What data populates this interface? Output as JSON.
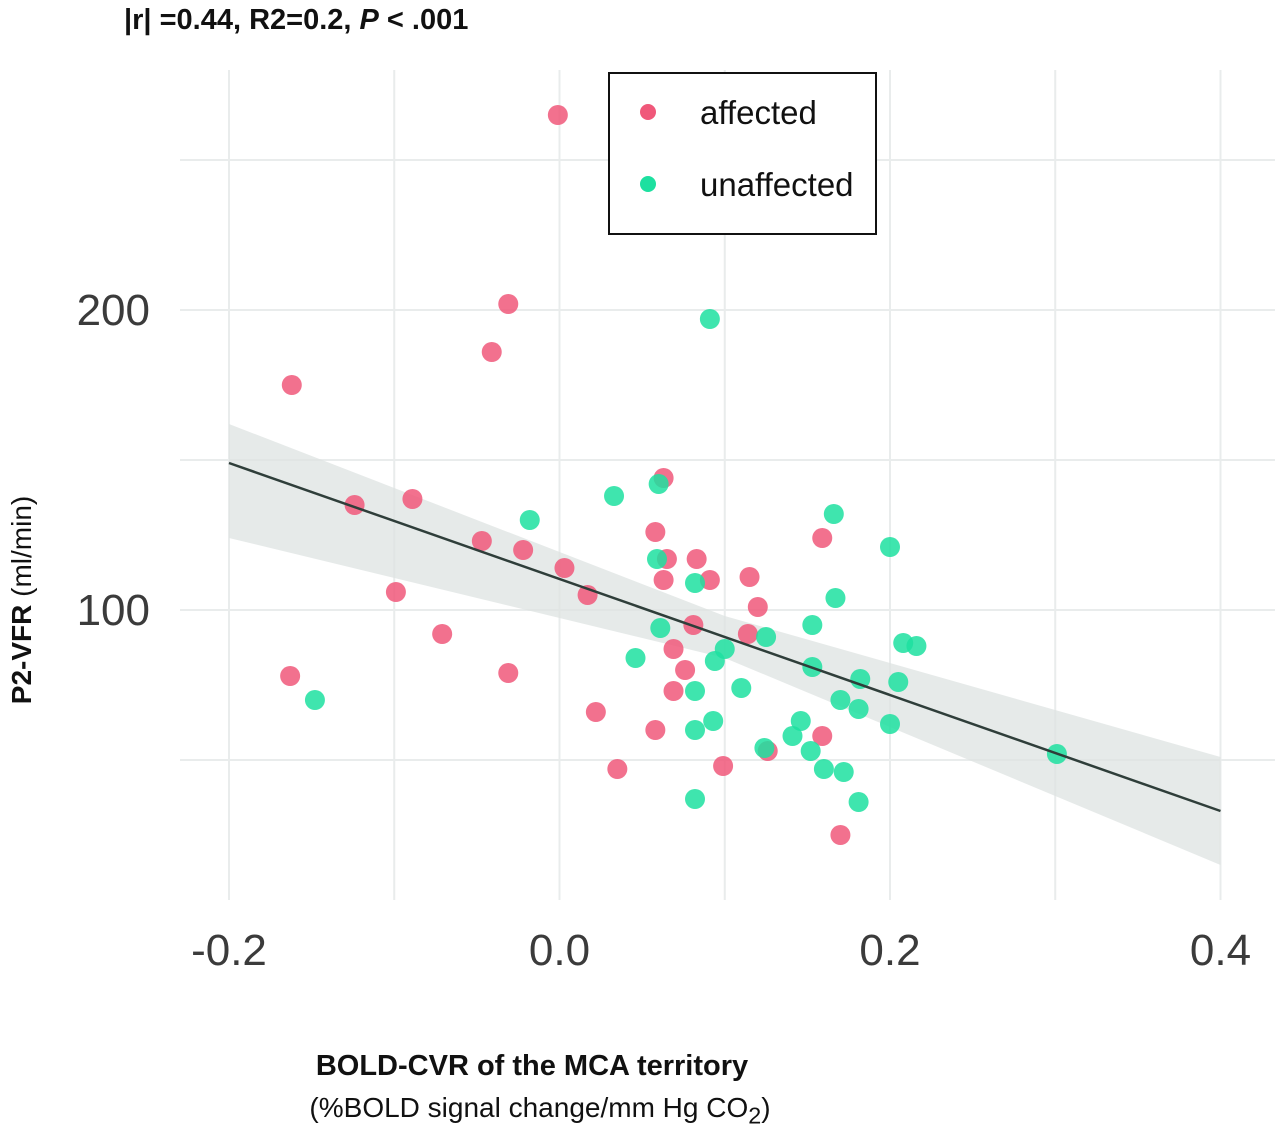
{
  "stats_line": {
    "prefix": "|r| =0.44, R2=0.2, ",
    "p_symbol": "P",
    "p_value": " < .001"
  },
  "chart_data": {
    "type": "scatter",
    "xlabel": "BOLD-CVR of the MCA territory",
    "xlabel_sub": "(%BOLD signal change/mm Hg  CO",
    "xlabel_sub_subscript": "2",
    "xlabel_sub_end": ")",
    "ylabel_bold": "P2-VFR",
    "ylabel_unit": " (ml/min)",
    "xlim": [
      -0.2,
      0.4
    ],
    "ylim": [
      10,
      290
    ],
    "x_ticks": [
      -0.2,
      0.0,
      0.2,
      0.4
    ],
    "x_tick_labels": [
      "-0.2",
      "0.0",
      "0.2",
      "0.4"
    ],
    "y_ticks": [
      100,
      200
    ],
    "y_tick_labels": [
      "100",
      "200"
    ],
    "grid": true,
    "legend_position": "top-center",
    "series": [
      {
        "name": "affected",
        "color": "#f0587a",
        "points": [
          [
            -0.001,
            265
          ],
          [
            -0.031,
            202
          ],
          [
            -0.041,
            186
          ],
          [
            -0.162,
            175
          ],
          [
            0.063,
            144
          ],
          [
            -0.089,
            137
          ],
          [
            -0.124,
            135
          ],
          [
            0.058,
            126
          ],
          [
            0.159,
            124
          ],
          [
            -0.047,
            123
          ],
          [
            -0.022,
            120
          ],
          [
            0.083,
            117
          ],
          [
            0.065,
            117
          ],
          [
            0.003,
            114
          ],
          [
            0.115,
            111
          ],
          [
            0.063,
            110
          ],
          [
            0.091,
            110
          ],
          [
            -0.099,
            106
          ],
          [
            0.017,
            105
          ],
          [
            0.12,
            101
          ],
          [
            0.081,
            95
          ],
          [
            0.114,
            92
          ],
          [
            -0.071,
            92
          ],
          [
            0.069,
            87
          ],
          [
            0.076,
            80
          ],
          [
            -0.031,
            79
          ],
          [
            -0.163,
            78
          ],
          [
            0.069,
            73
          ],
          [
            0.022,
            66
          ],
          [
            0.058,
            60
          ],
          [
            0.159,
            58
          ],
          [
            0.126,
            53
          ],
          [
            0.099,
            48
          ],
          [
            0.035,
            47
          ],
          [
            0.17,
            25
          ]
        ]
      },
      {
        "name": "unaffected",
        "color": "#1de0a0",
        "points": [
          [
            0.091,
            197
          ],
          [
            0.06,
            142
          ],
          [
            0.033,
            138
          ],
          [
            0.166,
            132
          ],
          [
            -0.018,
            130
          ],
          [
            0.2,
            121
          ],
          [
            0.059,
            117
          ],
          [
            0.082,
            109
          ],
          [
            0.167,
            104
          ],
          [
            0.153,
            95
          ],
          [
            0.061,
            94
          ],
          [
            0.125,
            91
          ],
          [
            0.208,
            89
          ],
          [
            0.216,
            88
          ],
          [
            0.1,
            87
          ],
          [
            0.046,
            84
          ],
          [
            0.094,
            83
          ],
          [
            0.153,
            81
          ],
          [
            0.182,
            77
          ],
          [
            0.205,
            76
          ],
          [
            0.11,
            74
          ],
          [
            0.082,
            73
          ],
          [
            -0.148,
            70
          ],
          [
            0.17,
            70
          ],
          [
            0.181,
            67
          ],
          [
            0.093,
            63
          ],
          [
            0.146,
            63
          ],
          [
            0.2,
            62
          ],
          [
            0.082,
            60
          ],
          [
            0.141,
            58
          ],
          [
            0.124,
            54
          ],
          [
            0.152,
            53
          ],
          [
            0.301,
            52
          ],
          [
            0.16,
            47
          ],
          [
            0.172,
            46
          ],
          [
            0.082,
            37
          ],
          [
            0.181,
            36
          ]
        ]
      }
    ],
    "regression": {
      "color": "#2f3e3a",
      "band_color": "#dde3e1",
      "x": [
        -0.2,
        0.4
      ],
      "y": [
        149,
        33
      ],
      "band_lower_at_ends": [
        124,
        15
      ],
      "band_upper_at_ends": [
        162,
        51
      ],
      "band_center_x": 0.1,
      "band_center_halfwidth": 7
    }
  }
}
